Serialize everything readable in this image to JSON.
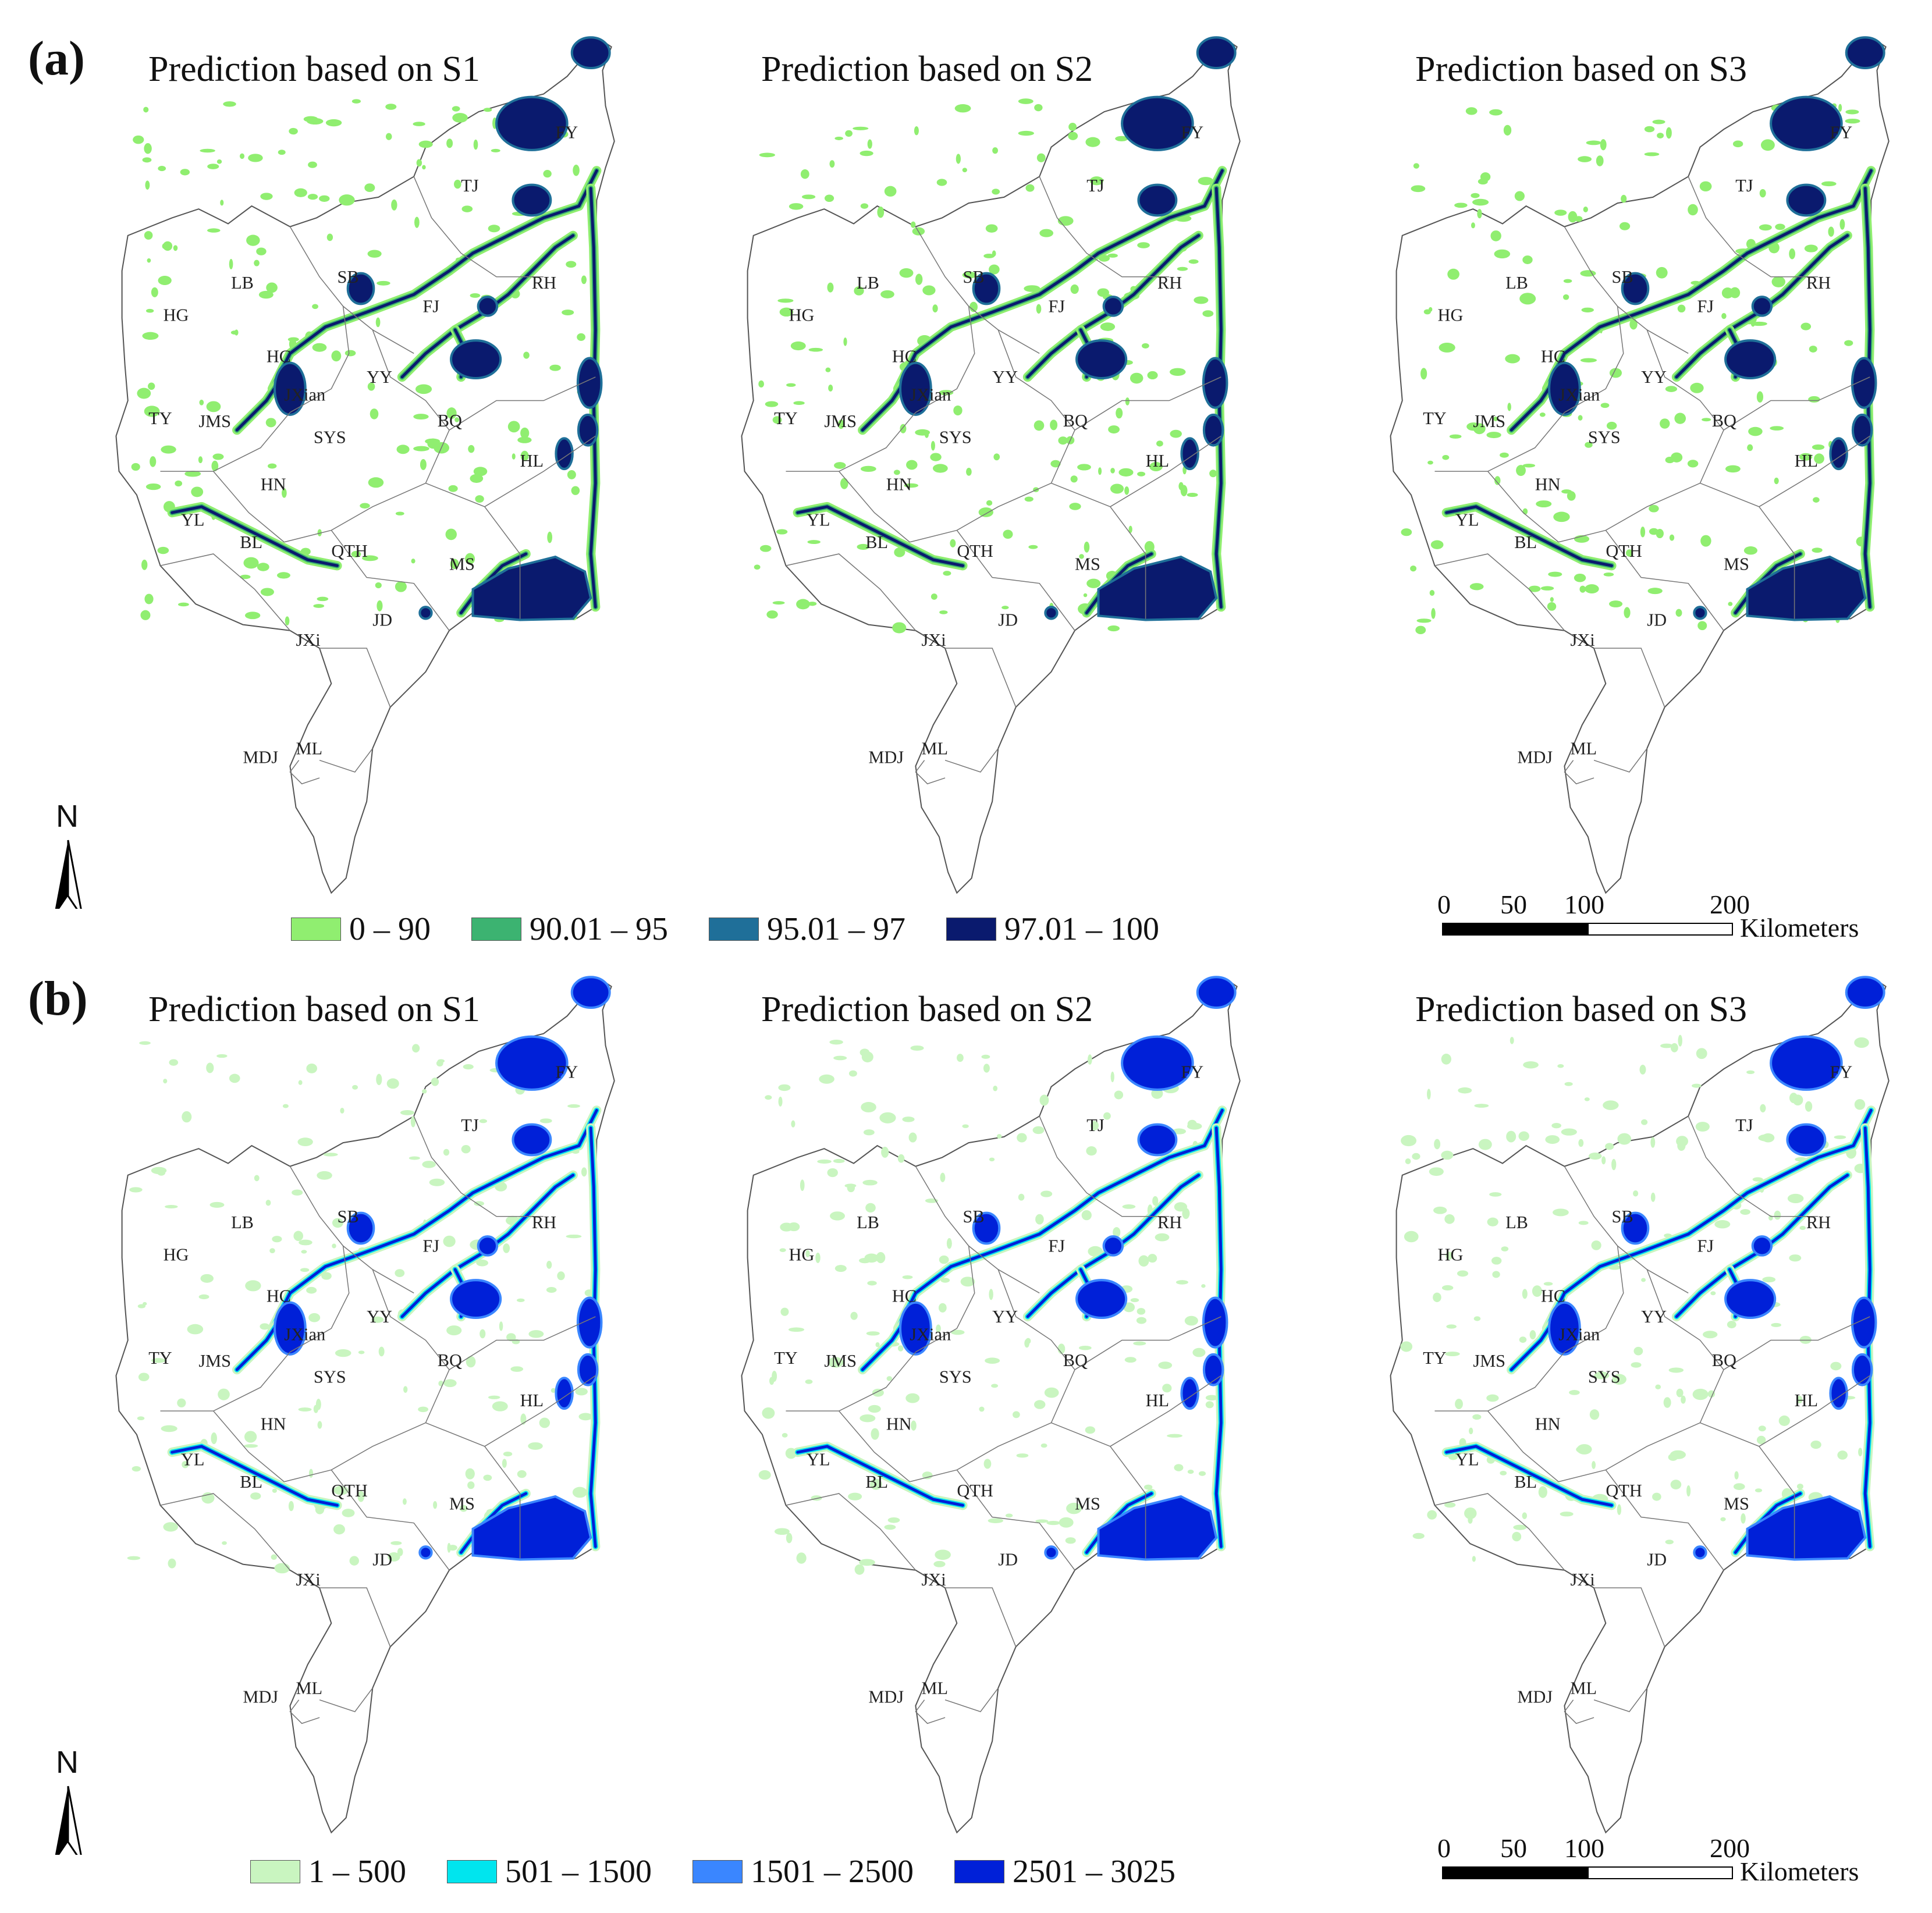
{
  "panels": [
    {
      "letter": "(a)",
      "maps": [
        {
          "title": "Prediction based on S1"
        },
        {
          "title": "Prediction based on S2"
        },
        {
          "title": "Prediction based on S3"
        }
      ],
      "legend": [
        {
          "label": "0 – 90",
          "color": "#90ee70"
        },
        {
          "label": "90.01 – 95",
          "color": "#3cb371"
        },
        {
          "label": "95.01 – 97",
          "color": "#1f6f99"
        },
        {
          "label": "97.01 – 100",
          "color": "#0a1a6e"
        }
      ]
    },
    {
      "letter": "(b)",
      "maps": [
        {
          "title": "Prediction based on S1"
        },
        {
          "title": "Prediction based on S2"
        },
        {
          "title": "Prediction based on S3"
        }
      ],
      "legend": [
        {
          "label": "1 – 500",
          "color": "#c9f5c0"
        },
        {
          "label": "501 – 1500",
          "color": "#00e5ee"
        },
        {
          "label": "1501 – 2500",
          "color": "#3a86ff"
        },
        {
          "label": "2501 – 3025",
          "color": "#0020d8"
        }
      ]
    }
  ],
  "north_label": "N",
  "scale": {
    "ticks": [
      "0",
      "50",
      "100",
      "200"
    ],
    "unit": "Kilometers"
  },
  "region_labels": [
    "FY",
    "TJ",
    "SB",
    "LB",
    "HG",
    "FJ",
    "RH",
    "HC",
    "YY",
    "JXian",
    "TY",
    "JMS",
    "SYS",
    "BQ",
    "HL",
    "HN",
    "YL",
    "BL",
    "QTH",
    "MS",
    "JD",
    "JXi",
    "ML",
    "MDJ"
  ]
}
